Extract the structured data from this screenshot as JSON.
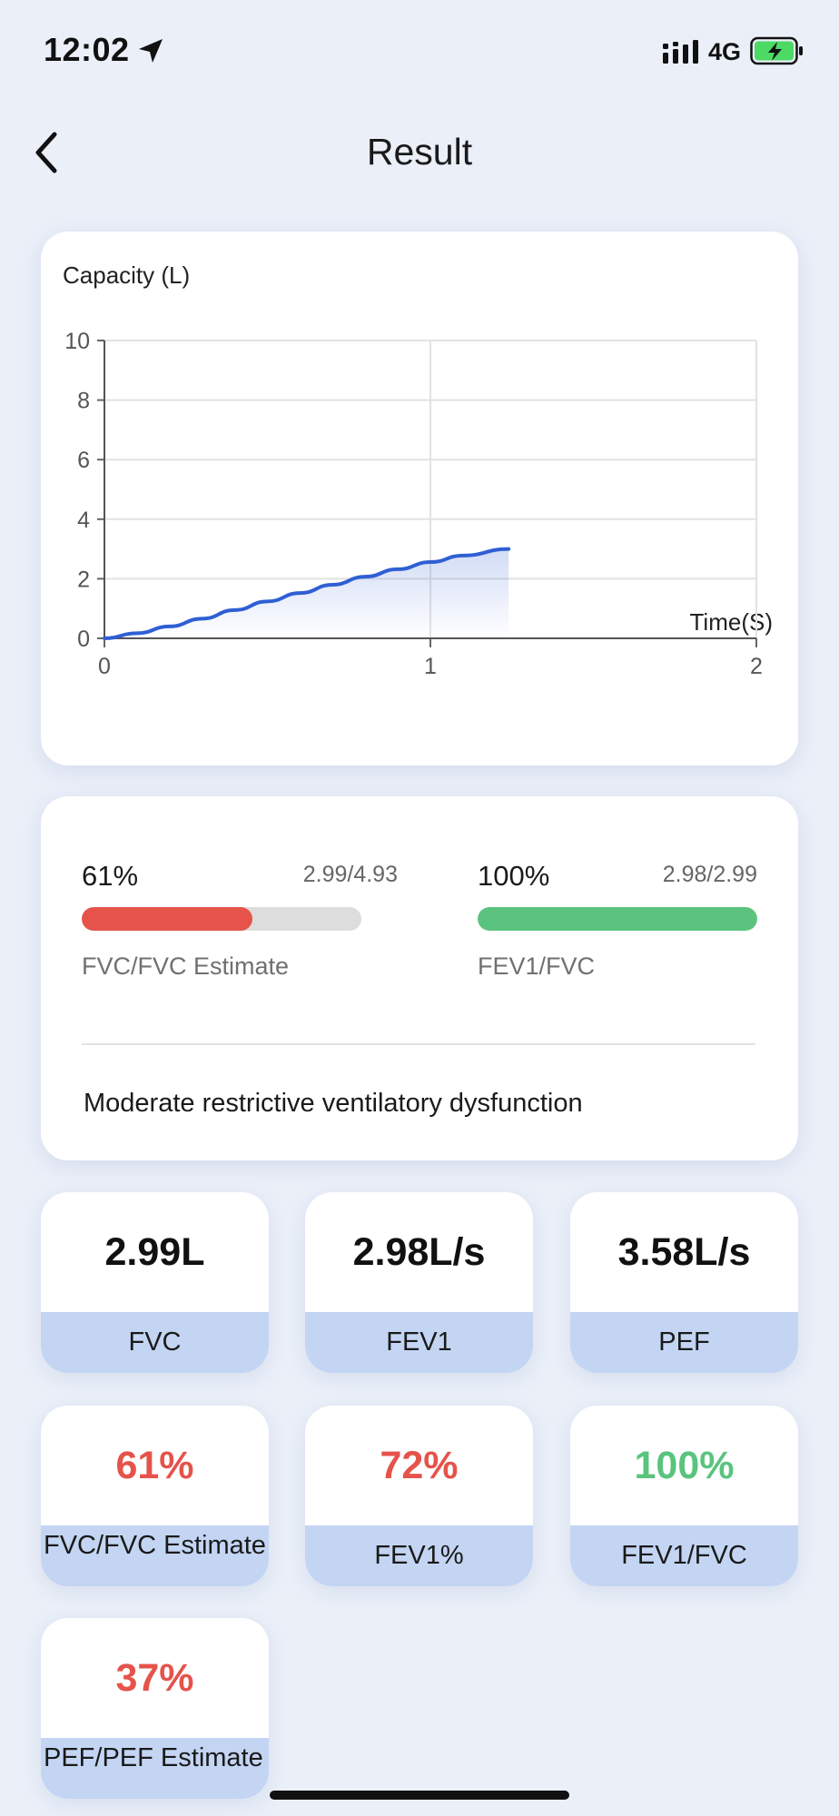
{
  "status_bar": {
    "time": "12:02",
    "network": "4G"
  },
  "header": {
    "title": "Result"
  },
  "chart_data": {
    "type": "area",
    "ylabel": "Capacity (L)",
    "xlabel": "Time(S)",
    "xlim": [
      0,
      2
    ],
    "ylim": [
      0,
      10
    ],
    "x_ticks": [
      "0",
      "1",
      "2"
    ],
    "y_ticks": [
      "0",
      "2",
      "4",
      "6",
      "8",
      "10"
    ],
    "grid": true,
    "series": [
      {
        "x": [
          0,
          0.1,
          0.2,
          0.3,
          0.4,
          0.5,
          0.6,
          0.7,
          0.8,
          0.9,
          1.0,
          1.1,
          1.24
        ],
        "y": [
          0,
          0.17,
          0.4,
          0.66,
          0.95,
          1.24,
          1.52,
          1.8,
          2.07,
          2.32,
          2.56,
          2.78,
          3.0
        ],
        "color": "#2f5fd4"
      }
    ]
  },
  "summary": {
    "left": {
      "percent": "61%",
      "ratio": "2.99/4.93",
      "caption": "FVC/FVC Estimate",
      "fill_fraction": 0.61,
      "color": "#e5534b"
    },
    "right": {
      "percent": "100%",
      "ratio": "2.98/2.99",
      "caption": "FEV1/FVC",
      "fill_fraction": 1.0,
      "color": "#5ac47e"
    },
    "diagnosis": "Moderate restrictive ventilatory dysfunction"
  },
  "tiles": [
    {
      "value": "2.99L",
      "label": "FVC",
      "color": "#111111"
    },
    {
      "value": "2.98L/s",
      "label": "FEV1",
      "color": "#111111"
    },
    {
      "value": "3.58L/s",
      "label": "PEF",
      "color": "#111111"
    },
    {
      "value": "61%",
      "label": "FVC/FVC Estimate",
      "color": "#e5534b"
    },
    {
      "value": "72%",
      "label": "FEV1%",
      "color": "#e5534b"
    },
    {
      "value": "100%",
      "label": "FEV1/FVC",
      "color": "#5ac47e"
    },
    {
      "value": "37%",
      "label": "PEF/PEF Estimate",
      "color": "#e5534b"
    }
  ],
  "icons": {
    "back": "chevron-left-icon",
    "location": "location-arrow-icon",
    "signal": "signal-bars-icon",
    "battery": "battery-charging-icon"
  }
}
